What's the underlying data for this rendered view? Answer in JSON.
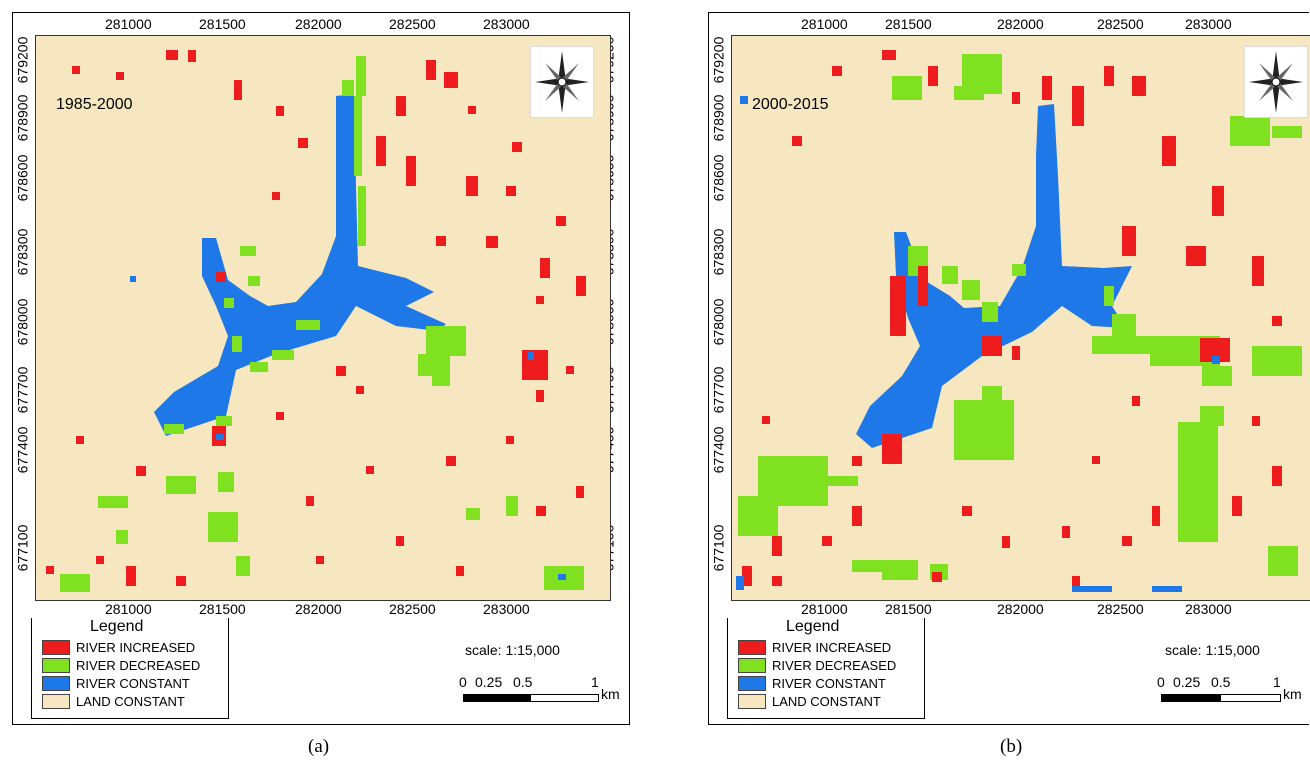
{
  "panels": [
    {
      "id": "a",
      "period": "1985-2000",
      "caption": "(a)",
      "x_ticks": [
        "281000",
        "281500",
        "282000",
        "282500",
        "283000"
      ],
      "y_ticks": [
        "679200",
        "678900",
        "678600",
        "678300",
        "678000",
        "677700",
        "677400",
        "677100"
      ],
      "legend": {
        "title": "Legend",
        "items": [
          {
            "label": "RIVER INCREASED",
            "color": "#ee1c1c"
          },
          {
            "label": "RIVER DECREASED",
            "color": "#7fe11f"
          },
          {
            "label": "RIVER CONSTANT",
            "color": "#1f78e8"
          },
          {
            "label": "LAND CONSTANT",
            "color": "#f6e7c0"
          }
        ]
      },
      "scale": {
        "text": "scale: 1:15,000",
        "labels": [
          "0",
          "0.25",
          "0.5",
          "1"
        ],
        "unit": "km"
      }
    },
    {
      "id": "b",
      "period": "2000-2015",
      "caption": "(b)",
      "x_ticks": [
        "281000",
        "281500",
        "282000",
        "282500",
        "283000"
      ],
      "y_ticks": [
        "679200",
        "678900",
        "678600",
        "678300",
        "678000",
        "677700",
        "677400",
        "677100"
      ],
      "legend": {
        "title": "Legend",
        "items": [
          {
            "label": "RIVER INCREASED",
            "color": "#ee1c1c"
          },
          {
            "label": "RIVER DECREASED",
            "color": "#7fe11f"
          },
          {
            "label": "RIVER CONSTANT",
            "color": "#1f78e8"
          },
          {
            "label": "LAND CONSTANT",
            "color": "#f6e7c0"
          }
        ]
      },
      "scale": {
        "text": "scale: 1:15,000",
        "labels": [
          "0",
          "0.25",
          "0.5",
          "1"
        ],
        "unit": "km"
      }
    }
  ]
}
